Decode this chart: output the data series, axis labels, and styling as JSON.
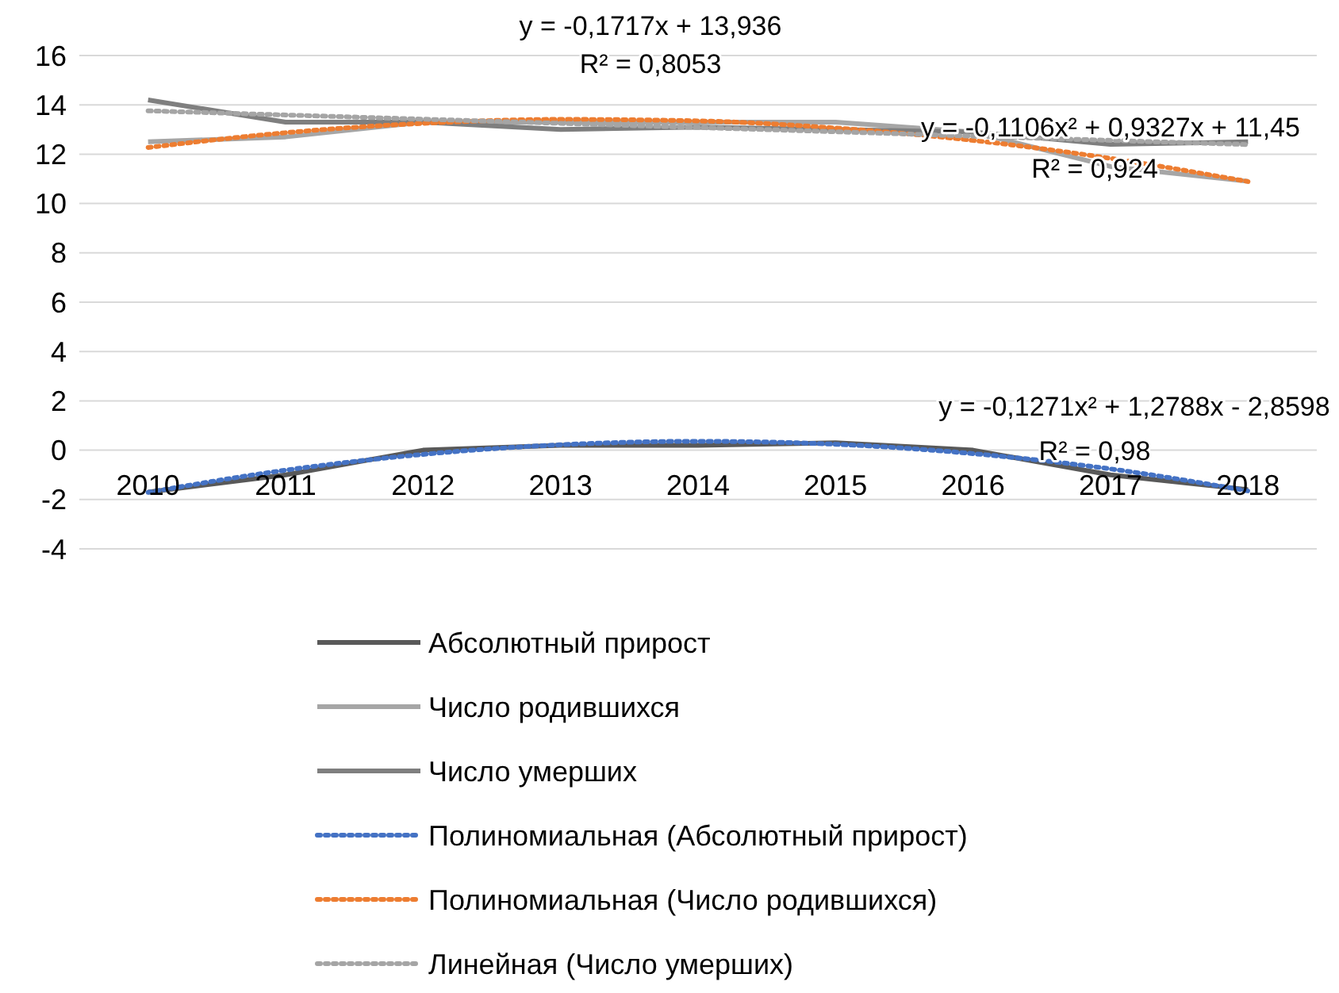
{
  "chart_data": {
    "type": "line",
    "categories": [
      "2010",
      "2011",
      "2012",
      "2013",
      "2014",
      "2015",
      "2016",
      "2017",
      "2018"
    ],
    "ylim": [
      -4,
      16
    ],
    "yticks": [
      -4,
      -2,
      0,
      2,
      4,
      6,
      8,
      10,
      12,
      14,
      16
    ],
    "grid": "y",
    "legend": "bottom",
    "marker": "none",
    "line_style": "solid",
    "series": [
      {
        "name": "Абсолютный прирост",
        "color": "#595959",
        "values": [
          -1.7,
          -1.0,
          0,
          0.2,
          0.2,
          0.3,
          0,
          -1.0,
          -1.6
        ]
      },
      {
        "name": "Число родившихся",
        "color": "#a6a6a6",
        "values": [
          12.5,
          12.7,
          13.3,
          13.3,
          13.3,
          13.3,
          12.9,
          11.5,
          10.9
        ]
      },
      {
        "name": "Число умерших",
        "color": "#7f7f7f",
        "values": [
          14.2,
          13.3,
          13.3,
          13.0,
          13.1,
          13.0,
          12.9,
          12.4,
          12.5
        ]
      },
      {
        "name": "Полиномиальная (Абсолютный прирост)",
        "color": "#4472c4",
        "line_style": "dotted",
        "values": [
          -1.71,
          -0.81,
          -0.17,
          0.22,
          0.36,
          0.24,
          -0.14,
          -0.76,
          -1.65
        ]
      },
      {
        "name": "Полиномиальная (Число родившихся)",
        "color": "#ed7d31",
        "line_style": "dotted",
        "values": [
          12.27,
          12.87,
          13.25,
          13.41,
          13.35,
          13.06,
          12.56,
          11.83,
          10.89
        ]
      },
      {
        "name": "Линейная (Число умерших)",
        "color": "#a5a5a5",
        "line_style": "dotted",
        "values": [
          13.76,
          13.59,
          13.42,
          13.25,
          13.08,
          12.91,
          12.73,
          12.56,
          12.39
        ]
      }
    ],
    "annotations": [
      "y = -0,1717x + 13,936",
      "R² = 0,8053",
      "y = -0,1106x² + 0,9327x + 11,45",
      "R² = 0,924",
      "y = -0,1271x² + 1,2788x - 2,8598",
      "R² = 0,98"
    ]
  }
}
